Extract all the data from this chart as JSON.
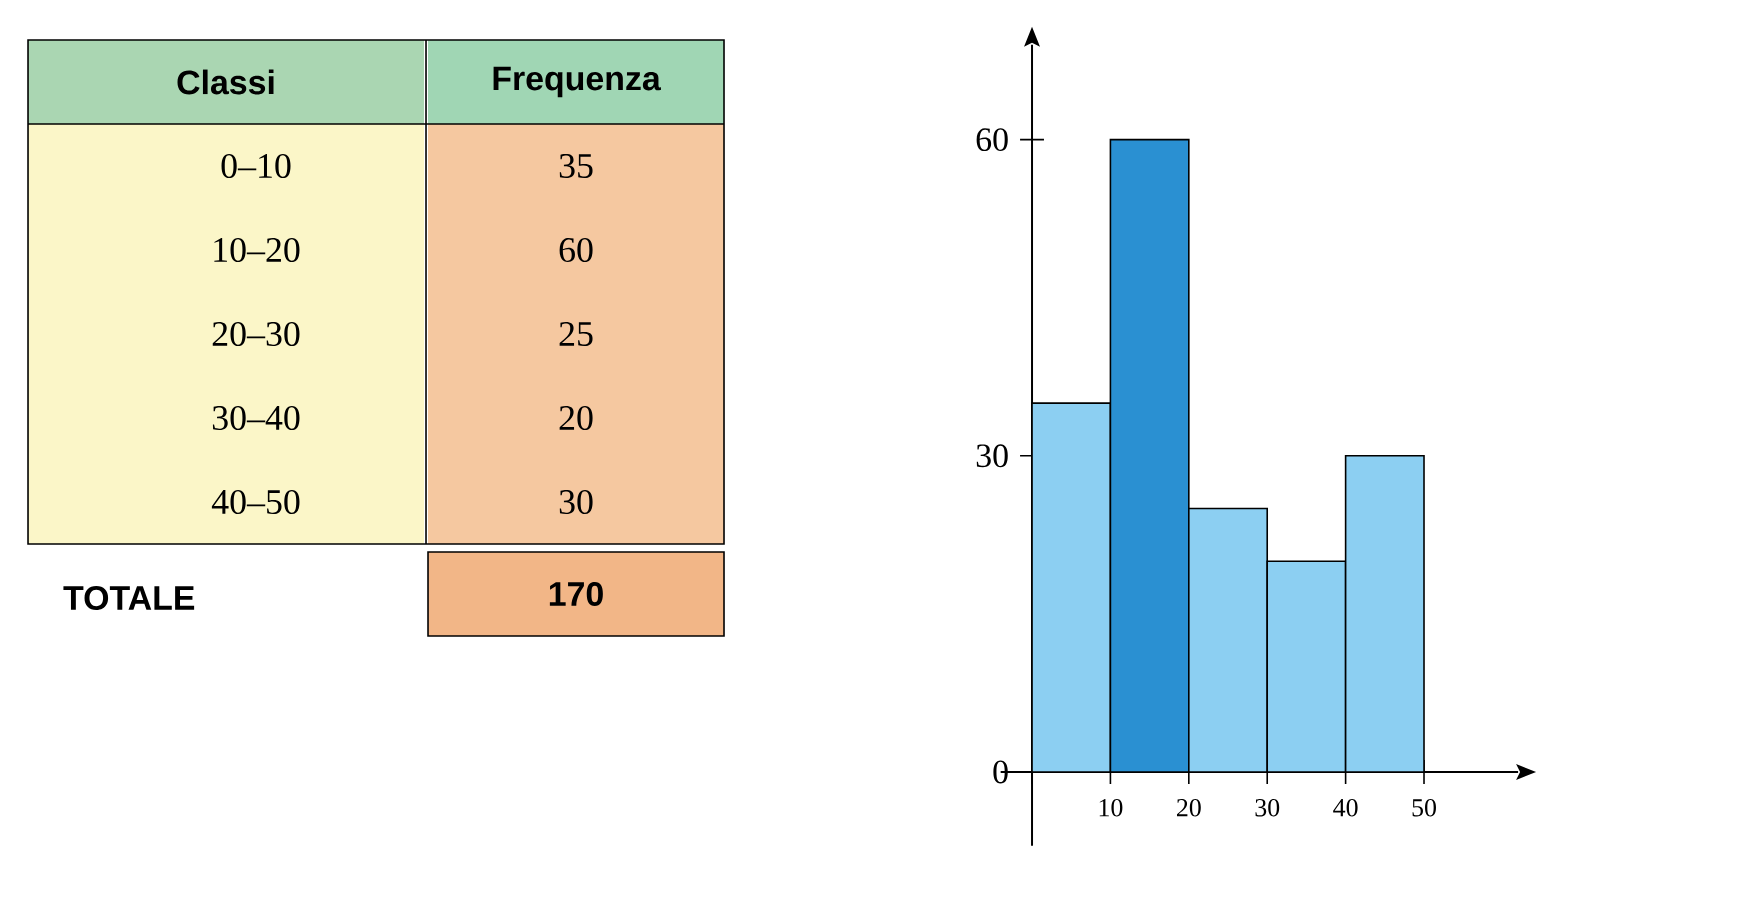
{
  "chart_data": [
    {
      "type": "other",
      "xlabel": "Classi",
      "ylabel": "Frequenza",
      "categories": [
        "0–10",
        "10–20",
        "20–30",
        "30–40",
        "40–50"
      ],
      "values": [
        35,
        60,
        25,
        20,
        30
      ],
      "annotations": [
        "TOTALE",
        "170"
      ],
      "data_labels": true
    },
    {
      "type": "histogram",
      "bins": [
        0,
        10,
        20,
        30,
        40,
        50
      ],
      "values": [
        35,
        60,
        25,
        20,
        30
      ],
      "colors": [
        "#8ccff2",
        "#2a90d2",
        "#8ccff2",
        "#8ccff2",
        "#8ccff2"
      ],
      "xlim": [
        -4,
        62
      ],
      "ylim": [
        -7,
        69
      ],
      "xticks": [
        {
          "value": 0,
          "label": null
        },
        10,
        20,
        30,
        40,
        50
      ],
      "yticks": [
        0,
        30,
        60
      ]
    }
  ]
}
